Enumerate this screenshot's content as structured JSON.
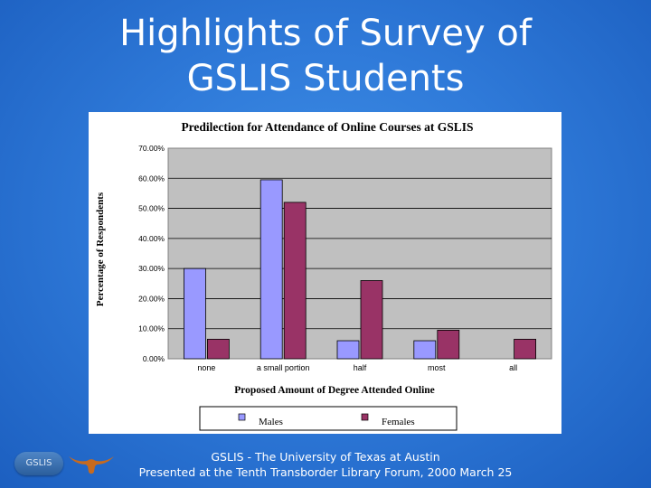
{
  "slide": {
    "title_line1": "Highlights of Survey of",
    "title_line2": "GSLIS Students",
    "footer_line1": "GSLIS - The University of Texas at Austin",
    "footer_line2": "Presented at the Tenth Transborder Library Forum, 2000 March 25",
    "logo_text": "GSLIS",
    "logo_icon": "longhorn-icon"
  },
  "chart_data": {
    "type": "bar",
    "title": "Predilection for Attendance of Online Courses at GSLIS",
    "xlabel": "Proposed Amount of Degree Attended Online",
    "ylabel": "Percentage of Respondents",
    "categories": [
      "none",
      "a small portion",
      "half",
      "most",
      "all"
    ],
    "series": [
      {
        "name": "Males",
        "values": [
          30,
          59.5,
          6,
          6,
          0
        ],
        "color": "#9999ff"
      },
      {
        "name": "Females",
        "values": [
          6.5,
          52,
          26,
          9.5,
          6.5
        ],
        "color": "#993366"
      }
    ],
    "ylim": [
      0,
      70
    ],
    "yticks": [
      "0.00%",
      "10.00%",
      "20.00%",
      "30.00%",
      "40.00%",
      "50.00%",
      "60.00%",
      "70.00%"
    ],
    "grid": true,
    "plot_background": "#c0c0c0",
    "legend_position": "bottom"
  }
}
